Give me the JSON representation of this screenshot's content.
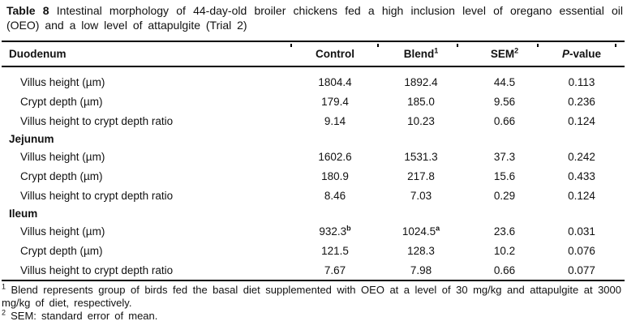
{
  "title": {
    "bold": "Table 8",
    "rest": " Intestinal morphology of 44-day-old broiler chickens fed a high inclusion level of oregano essential oil (OEO) and a low level of attapulgite (Trial 2)"
  },
  "header": {
    "label": "Duodenum",
    "col1": "Control",
    "col2": "Blend",
    "col2_sup": "1",
    "col3": "SEM",
    "col3_sup": "2",
    "col4_italic": "P",
    "col4_rest": "-value"
  },
  "body": {
    "duodenum": {
      "rows": [
        {
          "label": "Villus height (µm)",
          "control": "1804.4",
          "blend": "1892.4",
          "sem": "44.5",
          "p": "0.113"
        },
        {
          "label": "Crypt depth (µm)",
          "control": "179.4",
          "blend": "185.0",
          "sem": "9.56",
          "p": "0.236"
        },
        {
          "label": "Villus height to crypt depth ratio",
          "control": "9.14",
          "blend": "10.23",
          "sem": "0.66",
          "p": "0.124"
        }
      ]
    },
    "jejunum": {
      "section_label": "Jejunum",
      "rows": [
        {
          "label": "Villus height (µm)",
          "control": "1602.6",
          "blend": "1531.3",
          "sem": "37.3",
          "p": "0.242"
        },
        {
          "label": "Crypt depth (µm)",
          "control": "180.9",
          "blend": "217.8",
          "sem": "15.6",
          "p": "0.433"
        },
        {
          "label": "Villus height to crypt depth ratio",
          "control": "8.46",
          "blend": "7.03",
          "sem": "0.29",
          "p": "0.124"
        }
      ]
    },
    "ileum": {
      "section_label": "Ileum",
      "rows": [
        {
          "label": "Villus height (µm)",
          "control": "932.3",
          "control_sup": "b",
          "blend": "1024.5",
          "blend_sup": "a",
          "sem": "23.6",
          "p": "0.031"
        },
        {
          "label": "Crypt depth (µm)",
          "control": "121.5",
          "blend": "128.3",
          "sem": "10.2",
          "p": "0.076"
        },
        {
          "label": "Villus height to crypt depth ratio",
          "control": "7.67",
          "blend": "7.98",
          "sem": "0.66",
          "p": "0.077"
        }
      ]
    }
  },
  "footnotes": [
    {
      "marker": "1",
      "text": "Blend represents group of birds fed the basal diet supplemented with OEO at a level of 30 mg/kg and attapulgite at 3000 mg/kg of diet, respectively."
    },
    {
      "marker": "2",
      "text": "SEM: standard error of mean."
    }
  ]
}
